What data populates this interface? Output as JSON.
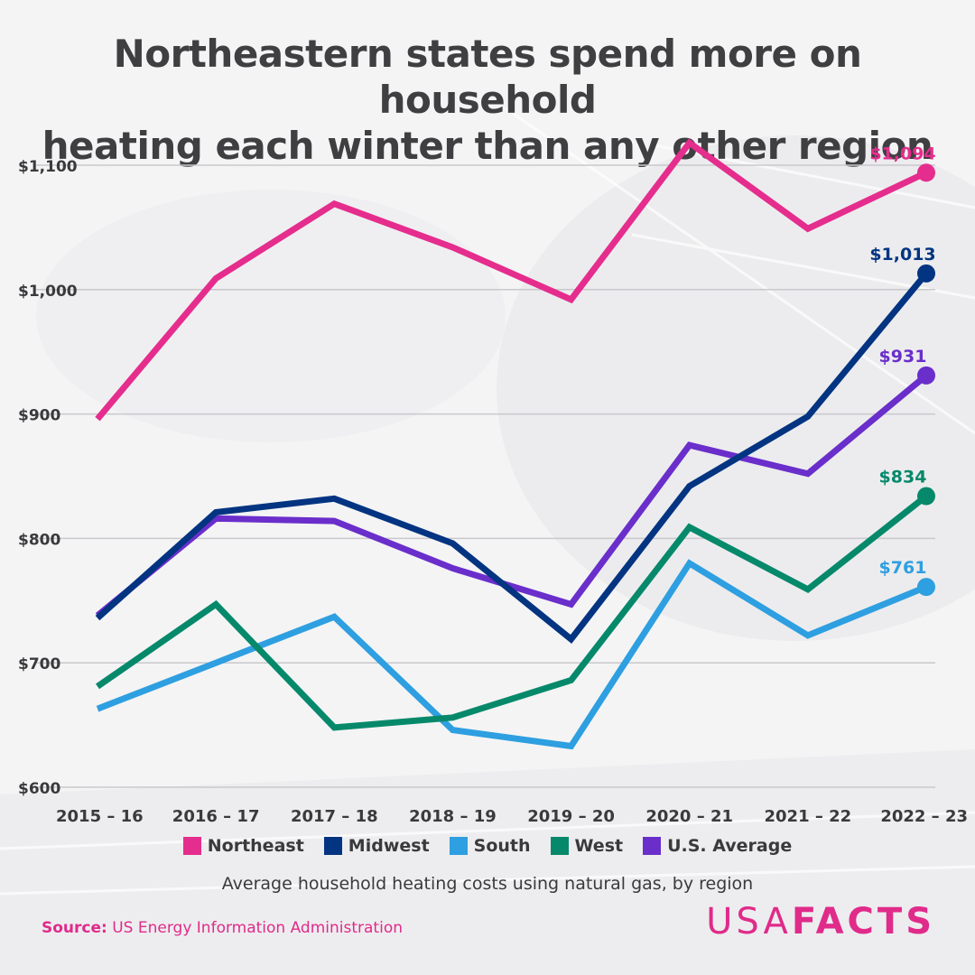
{
  "title": {
    "line1": "Northeastern states spend more on household",
    "line2": "heating each winter than any other region"
  },
  "subtitle": "Average household heating costs using natural gas, by region",
  "source": {
    "label": "Source:",
    "text": "US Energy Information Administration"
  },
  "logo": {
    "part1": "USA",
    "part2": "FACTS"
  },
  "colors": {
    "background": "#f4f4f5",
    "title": "#3f3f42",
    "grid": "#c9c9cc",
    "brand": "#e02b8a"
  },
  "chart_data": {
    "type": "line",
    "title": "Northeastern states spend more on household heating each winter than any other region",
    "subtitle": "Average household heating costs using natural gas, by region",
    "categories": [
      "2015 – 16",
      "2016 – 17",
      "2017 – 18",
      "2018 – 19",
      "2019 – 20",
      "2020 – 21",
      "2021 – 22",
      "2022 – 23"
    ],
    "ylim": [
      600,
      1120
    ],
    "yticks": [
      600,
      700,
      800,
      900,
      1000,
      1100
    ],
    "ytick_labels": [
      "$600",
      "$700",
      "$800",
      "$900",
      "$1,000",
      "$1,100"
    ],
    "grid": true,
    "legend_position": "bottom",
    "series": [
      {
        "name": "Northeast",
        "color": "#e52d8d",
        "values": [
          896,
          1009,
          1069,
          1034,
          992,
          1118,
          1049,
          1094
        ],
        "end_label": "$1,094"
      },
      {
        "name": "Midwest",
        "color": "#033481",
        "values": [
          736,
          821,
          832,
          796,
          719,
          842,
          898,
          1013
        ],
        "end_label": "$1,013"
      },
      {
        "name": "South",
        "color": "#2e9fe0",
        "values": [
          663,
          700,
          737,
          646,
          633,
          780,
          722,
          761
        ],
        "end_label": "$761"
      },
      {
        "name": "West",
        "color": "#06896a",
        "values": [
          681,
          747,
          648,
          656,
          686,
          809,
          759,
          834
        ],
        "end_label": "$834"
      },
      {
        "name": "U.S. Average",
        "color": "#6a2ecb",
        "values": [
          738,
          816,
          814,
          776,
          747,
          875,
          852,
          931
        ],
        "end_label": "$931"
      }
    ]
  }
}
